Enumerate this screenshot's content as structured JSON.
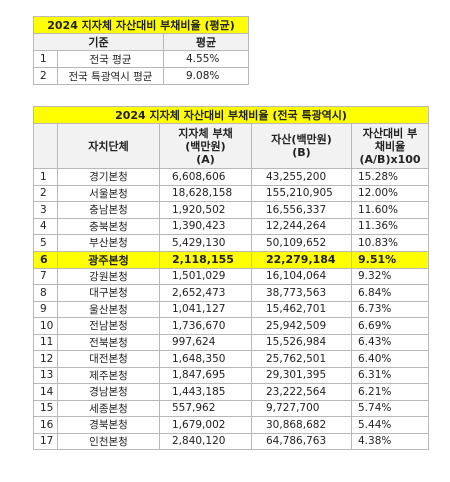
{
  "summary": {
    "title": "2024 지자체 자산대비 부채비율 (평균)",
    "headers": [
      "기준",
      "평균"
    ],
    "rows": [
      {
        "no": "1",
        "label": "전국 평균",
        "value": "4.55%"
      },
      {
        "no": "2",
        "label": "전국 특광역시 평균",
        "value": "9.08%"
      }
    ]
  },
  "detail": {
    "title": "2024 지자체 자산대비 부채비율 (전국 특광역시)",
    "headers": {
      "entity": "자치단체",
      "debt": "지자체 부채\n(백만원)\n(A)",
      "asset": "자산(백만원)\n(B)",
      "ratio": "자산대비 부\n채비율\n(A/B)x100"
    },
    "highlight_color": "#ffff00",
    "rows": [
      {
        "no": "1",
        "name": "경기본청",
        "debt": "6,608,606",
        "asset": "43,255,200",
        "ratio": "15.28%"
      },
      {
        "no": "2",
        "name": "서울본청",
        "debt": "18,628,158",
        "asset": "155,210,905",
        "ratio": "12.00%"
      },
      {
        "no": "3",
        "name": "충남본청",
        "debt": "1,920,502",
        "asset": "16,556,337",
        "ratio": "11.60%"
      },
      {
        "no": "4",
        "name": "충북본청",
        "debt": "1,390,423",
        "asset": "12,244,264",
        "ratio": "11.36%"
      },
      {
        "no": "5",
        "name": "부산본청",
        "debt": "5,429,130",
        "asset": "50,109,652",
        "ratio": "10.83%"
      },
      {
        "no": "6",
        "name": "광주본청",
        "debt": "2,118,155",
        "asset": "22,279,184",
        "ratio": "9.51%",
        "highlight": true
      },
      {
        "no": "7",
        "name": "강원본청",
        "debt": "1,501,029",
        "asset": "16,104,064",
        "ratio": "9.32%"
      },
      {
        "no": "8",
        "name": "대구본청",
        "debt": "2,652,473",
        "asset": "38,773,563",
        "ratio": "6.84%"
      },
      {
        "no": "9",
        "name": "울산본청",
        "debt": "1,041,127",
        "asset": "15,462,701",
        "ratio": "6.73%"
      },
      {
        "no": "10",
        "name": "전남본청",
        "debt": "1,736,670",
        "asset": "25,942,509",
        "ratio": "6.69%"
      },
      {
        "no": "11",
        "name": "전북본청",
        "debt": "997,624",
        "asset": "15,526,984",
        "ratio": "6.43%"
      },
      {
        "no": "12",
        "name": "대전본청",
        "debt": "1,648,350",
        "asset": "25,762,501",
        "ratio": "6.40%"
      },
      {
        "no": "13",
        "name": "제주본청",
        "debt": "1,847,695",
        "asset": "29,301,395",
        "ratio": "6.31%"
      },
      {
        "no": "14",
        "name": "경남본청",
        "debt": "1,443,185",
        "asset": "23,222,564",
        "ratio": "6.21%"
      },
      {
        "no": "15",
        "name": "세종본청",
        "debt": "557,962",
        "asset": "9,727,700",
        "ratio": "5.74%"
      },
      {
        "no": "16",
        "name": "경북본청",
        "debt": "1,679,002",
        "asset": "30,868,682",
        "ratio": "5.44%"
      },
      {
        "no": "17",
        "name": "인천본청",
        "debt": "2,840,120",
        "asset": "64,786,763",
        "ratio": "4.38%"
      }
    ]
  }
}
